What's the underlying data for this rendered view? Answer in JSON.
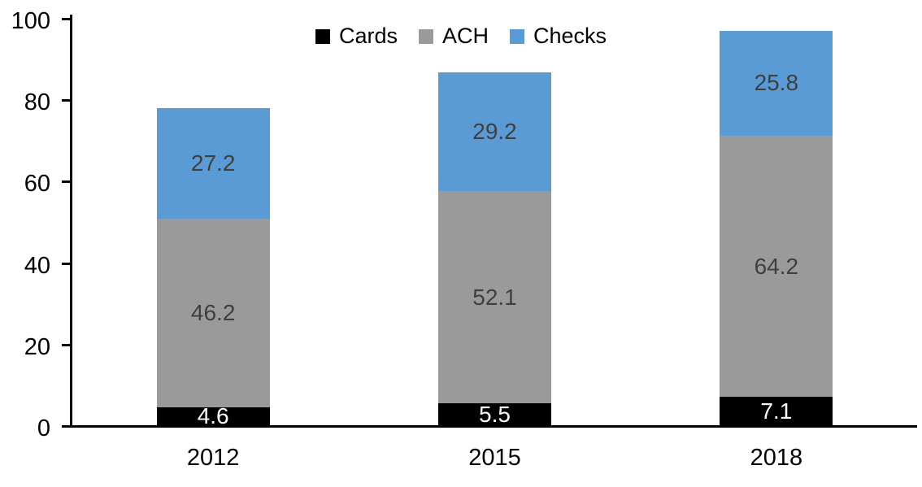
{
  "chart_data": {
    "type": "bar",
    "stacked": true,
    "title": "",
    "xlabel": "",
    "ylabel": "",
    "categories": [
      "2012",
      "2015",
      "2018"
    ],
    "series": [
      {
        "name": "Cards",
        "color": "#000000",
        "label_color": "#FFFFFF",
        "values": [
          4.6,
          5.5,
          7.1
        ]
      },
      {
        "name": "ACH",
        "color": "#9A9A9A",
        "label_color": "#3F3F3F",
        "values": [
          46.2,
          52.1,
          64.2
        ]
      },
      {
        "name": "Checks",
        "color": "#5B9BD5",
        "label_color": "#3F3F3F",
        "values": [
          27.2,
          29.2,
          25.8
        ]
      }
    ],
    "ylim": [
      0,
      100
    ],
    "yticks": [
      0,
      20,
      40,
      60,
      80,
      100
    ],
    "grid": false,
    "legend_position": "top-center",
    "axis_color": "#000000"
  }
}
